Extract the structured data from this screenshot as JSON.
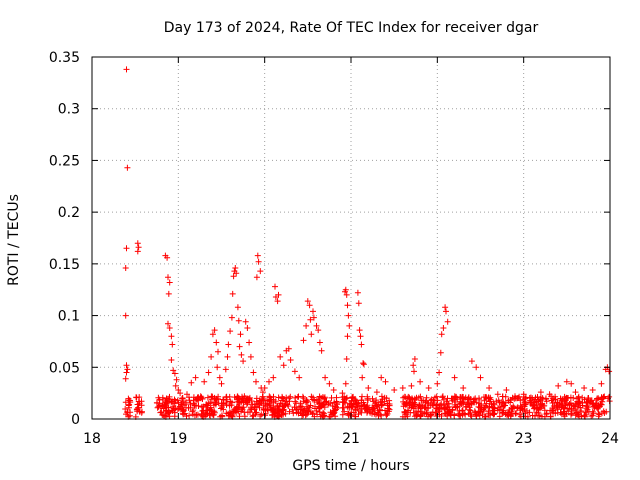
{
  "chart_data": {
    "type": "scatter",
    "title": "Day 173 of 2024, Rate Of TEC Index for receiver dgar",
    "xlabel": "GPS time / hours",
    "ylabel": "ROTI / TECUs",
    "xlim": [
      18,
      24
    ],
    "ylim": [
      0,
      0.35
    ],
    "x_ticks": [
      18,
      19,
      20,
      21,
      22,
      23,
      24
    ],
    "y_ticks": [
      0,
      0.05,
      0.1,
      0.15,
      0.2,
      0.25,
      0.3,
      0.35
    ],
    "x_tick_labels": [
      "18",
      "19",
      "20",
      "21",
      "22",
      "23",
      "24"
    ],
    "y_tick_labels": [
      "0",
      "0.05",
      "0.1",
      "0.15",
      "0.2",
      "0.25",
      "0.3",
      "0.35"
    ],
    "grid": true,
    "marker": "+",
    "color": "#ff0000",
    "series": [
      {
        "name": "ROTI",
        "points": [
          [
            18.4,
            0.338
          ],
          [
            18.41,
            0.243
          ],
          [
            18.4,
            0.165
          ],
          [
            18.39,
            0.146
          ],
          [
            18.39,
            0.1
          ],
          [
            18.4,
            0.052
          ],
          [
            18.41,
            0.048
          ],
          [
            18.39,
            0.039
          ],
          [
            18.4,
            0.045
          ],
          [
            18.53,
            0.17
          ],
          [
            18.54,
            0.166
          ],
          [
            18.53,
            0.162
          ],
          [
            18.85,
            0.158
          ],
          [
            18.87,
            0.156
          ],
          [
            18.88,
            0.137
          ],
          [
            18.9,
            0.132
          ],
          [
            18.89,
            0.121
          ],
          [
            18.88,
            0.092
          ],
          [
            18.9,
            0.088
          ],
          [
            18.92,
            0.08
          ],
          [
            18.93,
            0.072
          ],
          [
            18.92,
            0.057
          ],
          [
            18.94,
            0.047
          ],
          [
            18.96,
            0.044
          ],
          [
            18.98,
            0.038
          ],
          [
            18.97,
            0.032
          ],
          [
            19.0,
            0.028
          ],
          [
            19.02,
            0.025
          ],
          [
            19.05,
            0.02
          ],
          [
            19.1,
            0.024
          ],
          [
            19.15,
            0.035
          ],
          [
            19.2,
            0.04
          ],
          [
            19.3,
            0.036
          ],
          [
            19.35,
            0.045
          ],
          [
            19.38,
            0.06
          ],
          [
            19.4,
            0.082
          ],
          [
            19.42,
            0.086
          ],
          [
            19.44,
            0.074
          ],
          [
            19.46,
            0.065
          ],
          [
            19.45,
            0.05
          ],
          [
            19.48,
            0.04
          ],
          [
            19.5,
            0.034
          ],
          [
            19.55,
            0.048
          ],
          [
            19.57,
            0.06
          ],
          [
            19.58,
            0.072
          ],
          [
            19.6,
            0.085
          ],
          [
            19.62,
            0.098
          ],
          [
            19.63,
            0.121
          ],
          [
            19.64,
            0.138
          ],
          [
            19.65,
            0.143
          ],
          [
            19.66,
            0.146
          ],
          [
            19.67,
            0.141
          ],
          [
            19.69,
            0.108
          ],
          [
            19.7,
            0.095
          ],
          [
            19.72,
            0.082
          ],
          [
            19.71,
            0.07
          ],
          [
            19.73,
            0.062
          ],
          [
            19.75,
            0.056
          ],
          [
            19.78,
            0.094
          ],
          [
            19.8,
            0.088
          ],
          [
            19.82,
            0.074
          ],
          [
            19.84,
            0.06
          ],
          [
            19.87,
            0.045
          ],
          [
            19.9,
            0.036
          ],
          [
            19.92,
            0.158
          ],
          [
            19.93,
            0.152
          ],
          [
            19.91,
            0.137
          ],
          [
            19.95,
            0.143
          ],
          [
            19.96,
            0.03
          ],
          [
            19.98,
            0.026
          ],
          [
            20.0,
            0.03
          ],
          [
            20.05,
            0.036
          ],
          [
            20.1,
            0.04
          ],
          [
            20.12,
            0.128
          ],
          [
            20.13,
            0.118
          ],
          [
            20.15,
            0.114
          ],
          [
            20.16,
            0.12
          ],
          [
            20.18,
            0.06
          ],
          [
            20.22,
            0.052
          ],
          [
            20.25,
            0.066
          ],
          [
            20.28,
            0.068
          ],
          [
            20.3,
            0.057
          ],
          [
            20.35,
            0.046
          ],
          [
            20.4,
            0.04
          ],
          [
            20.45,
            0.076
          ],
          [
            20.48,
            0.09
          ],
          [
            20.5,
            0.114
          ],
          [
            20.52,
            0.11
          ],
          [
            20.53,
            0.096
          ],
          [
            20.54,
            0.082
          ],
          [
            20.56,
            0.104
          ],
          [
            20.57,
            0.098
          ],
          [
            20.6,
            0.09
          ],
          [
            20.62,
            0.086
          ],
          [
            20.64,
            0.074
          ],
          [
            20.66,
            0.066
          ],
          [
            20.7,
            0.04
          ],
          [
            20.75,
            0.034
          ],
          [
            20.8,
            0.028
          ],
          [
            20.9,
            0.025
          ],
          [
            20.93,
            0.123
          ],
          [
            20.94,
            0.125
          ],
          [
            20.95,
            0.12
          ],
          [
            20.96,
            0.11
          ],
          [
            20.97,
            0.1
          ],
          [
            20.98,
            0.09
          ],
          [
            20.96,
            0.08
          ],
          [
            20.95,
            0.058
          ],
          [
            20.94,
            0.034
          ],
          [
            21.08,
            0.122
          ],
          [
            21.09,
            0.112
          ],
          [
            21.1,
            0.086
          ],
          [
            21.11,
            0.08
          ],
          [
            21.12,
            0.072
          ],
          [
            21.14,
            0.054
          ],
          [
            21.15,
            0.053
          ],
          [
            21.13,
            0.04
          ],
          [
            21.2,
            0.03
          ],
          [
            21.3,
            0.026
          ],
          [
            21.35,
            0.04
          ],
          [
            21.4,
            0.036
          ],
          [
            21.5,
            0.028
          ],
          [
            21.6,
            0.03
          ],
          [
            21.7,
            0.032
          ],
          [
            21.72,
            0.052
          ],
          [
            21.74,
            0.058
          ],
          [
            21.73,
            0.046
          ],
          [
            21.8,
            0.036
          ],
          [
            21.9,
            0.03
          ],
          [
            22.0,
            0.034
          ],
          [
            22.02,
            0.045
          ],
          [
            22.04,
            0.064
          ],
          [
            22.05,
            0.082
          ],
          [
            22.07,
            0.088
          ],
          [
            22.09,
            0.108
          ],
          [
            22.1,
            0.104
          ],
          [
            22.12,
            0.094
          ],
          [
            22.2,
            0.04
          ],
          [
            22.3,
            0.03
          ],
          [
            22.4,
            0.056
          ],
          [
            22.45,
            0.05
          ],
          [
            22.5,
            0.04
          ],
          [
            22.6,
            0.03
          ],
          [
            22.7,
            0.024
          ],
          [
            22.8,
            0.028
          ],
          [
            22.9,
            0.022
          ],
          [
            23.0,
            0.024
          ],
          [
            23.1,
            0.02
          ],
          [
            23.2,
            0.026
          ],
          [
            23.3,
            0.024
          ],
          [
            23.4,
            0.032
          ],
          [
            23.5,
            0.036
          ],
          [
            23.55,
            0.034
          ],
          [
            23.6,
            0.026
          ],
          [
            23.7,
            0.03
          ],
          [
            23.8,
            0.028
          ],
          [
            23.9,
            0.034
          ],
          [
            23.95,
            0.048
          ],
          [
            23.97,
            0.05
          ],
          [
            23.99,
            0.046
          ]
        ]
      }
    ],
    "baseline_band": {
      "description": "dense cluster of low ROTI values",
      "x_segments": [
        [
          18.38,
          18.45
        ],
        [
          18.5,
          18.58
        ],
        [
          18.75,
          20.85
        ],
        [
          20.9,
          21.45
        ],
        [
          21.6,
          24.0
        ]
      ],
      "y_range": [
        0.002,
        0.022
      ]
    }
  }
}
